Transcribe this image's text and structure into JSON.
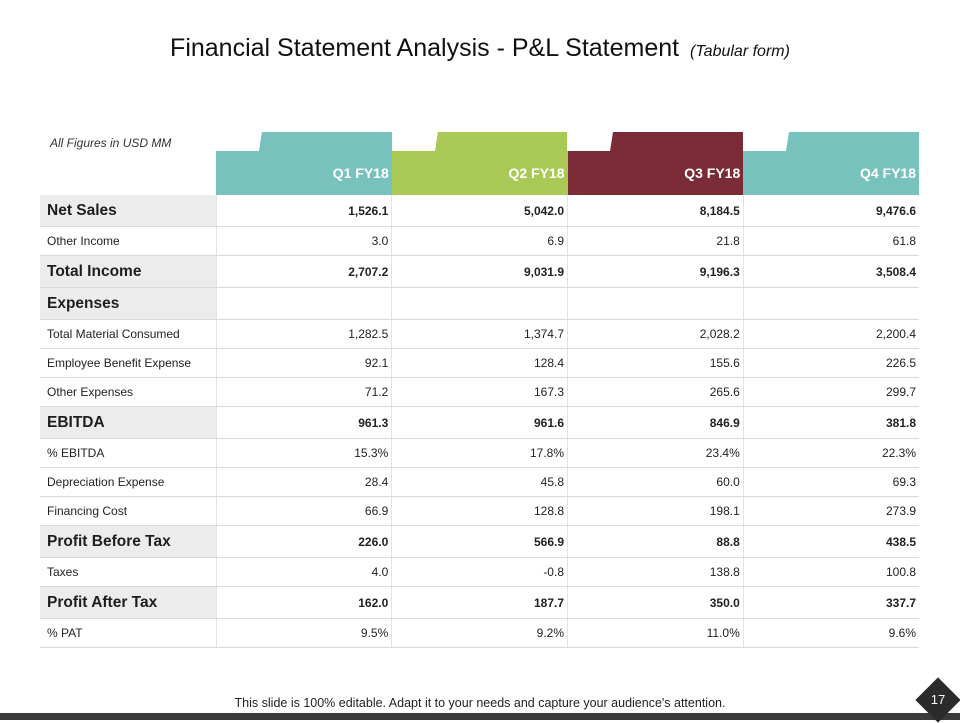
{
  "title": {
    "main": "Financial Statement Analysis - P&L Statement",
    "sub": "(Tabular form)"
  },
  "units_note": "All Figures in USD MM",
  "colors": {
    "q1": "#78c2bd",
    "q2": "#a9c956",
    "q3": "#7b2b36",
    "q4": "#78c2bd",
    "label_bg": "#ececec"
  },
  "columns": [
    "Q1 FY18",
    "Q2 FY18",
    "Q3 FY18",
    "Q4 FY18"
  ],
  "rows": [
    {
      "label": "Net Sales",
      "major": true,
      "values": [
        "1,526.1",
        "5,042.0",
        "8,184.5",
        "9,476.6"
      ]
    },
    {
      "label": "Other Income",
      "major": false,
      "values": [
        "3.0",
        "6.9",
        "21.8",
        "61.8"
      ]
    },
    {
      "label": "Total Income",
      "major": true,
      "values": [
        "2,707.2",
        "9,031.9",
        "9,196.3",
        "3,508.4"
      ]
    },
    {
      "label": "Expenses",
      "major": true,
      "values": [
        "",
        "",
        "",
        ""
      ]
    },
    {
      "label": "Total Material Consumed",
      "major": false,
      "values": [
        "1,282.5",
        "1,374.7",
        "2,028.2",
        "2,200.4"
      ]
    },
    {
      "label": "Employee Benefit Expense",
      "major": false,
      "values": [
        "92.1",
        "128.4",
        "155.6",
        "226.5"
      ]
    },
    {
      "label": "Other Expenses",
      "major": false,
      "values": [
        "71.2",
        "167.3",
        "265.6",
        "299.7"
      ]
    },
    {
      "label": "EBITDA",
      "major": true,
      "values": [
        "961.3",
        "961.6",
        "846.9",
        "381.8"
      ]
    },
    {
      "label": "% EBITDA",
      "major": false,
      "values": [
        "15.3%",
        "17.8%",
        "23.4%",
        "22.3%"
      ]
    },
    {
      "label": "Depreciation Expense",
      "major": false,
      "values": [
        "28.4",
        "45.8",
        "60.0",
        "69.3"
      ]
    },
    {
      "label": "Financing Cost",
      "major": false,
      "values": [
        "66.9",
        "128.8",
        "198.1",
        "273.9"
      ]
    },
    {
      "label": "Profit Before Tax",
      "major": true,
      "values": [
        "226.0",
        "566.9",
        "88.8",
        "438.5"
      ]
    },
    {
      "label": "Taxes",
      "major": false,
      "values": [
        "4.0",
        "-0.8",
        "138.8",
        "100.8"
      ]
    },
    {
      "label": "Profit After Tax",
      "major": true,
      "values": [
        "162.0",
        "187.7",
        "350.0",
        "337.7"
      ]
    },
    {
      "label": "% PAT",
      "major": false,
      "values": [
        "9.5%",
        "9.2%",
        "11.0%",
        "9.6%"
      ]
    }
  ],
  "footer": "This slide is 100% editable. Adapt it to your needs and capture your audience's attention.",
  "page_number": "17"
}
